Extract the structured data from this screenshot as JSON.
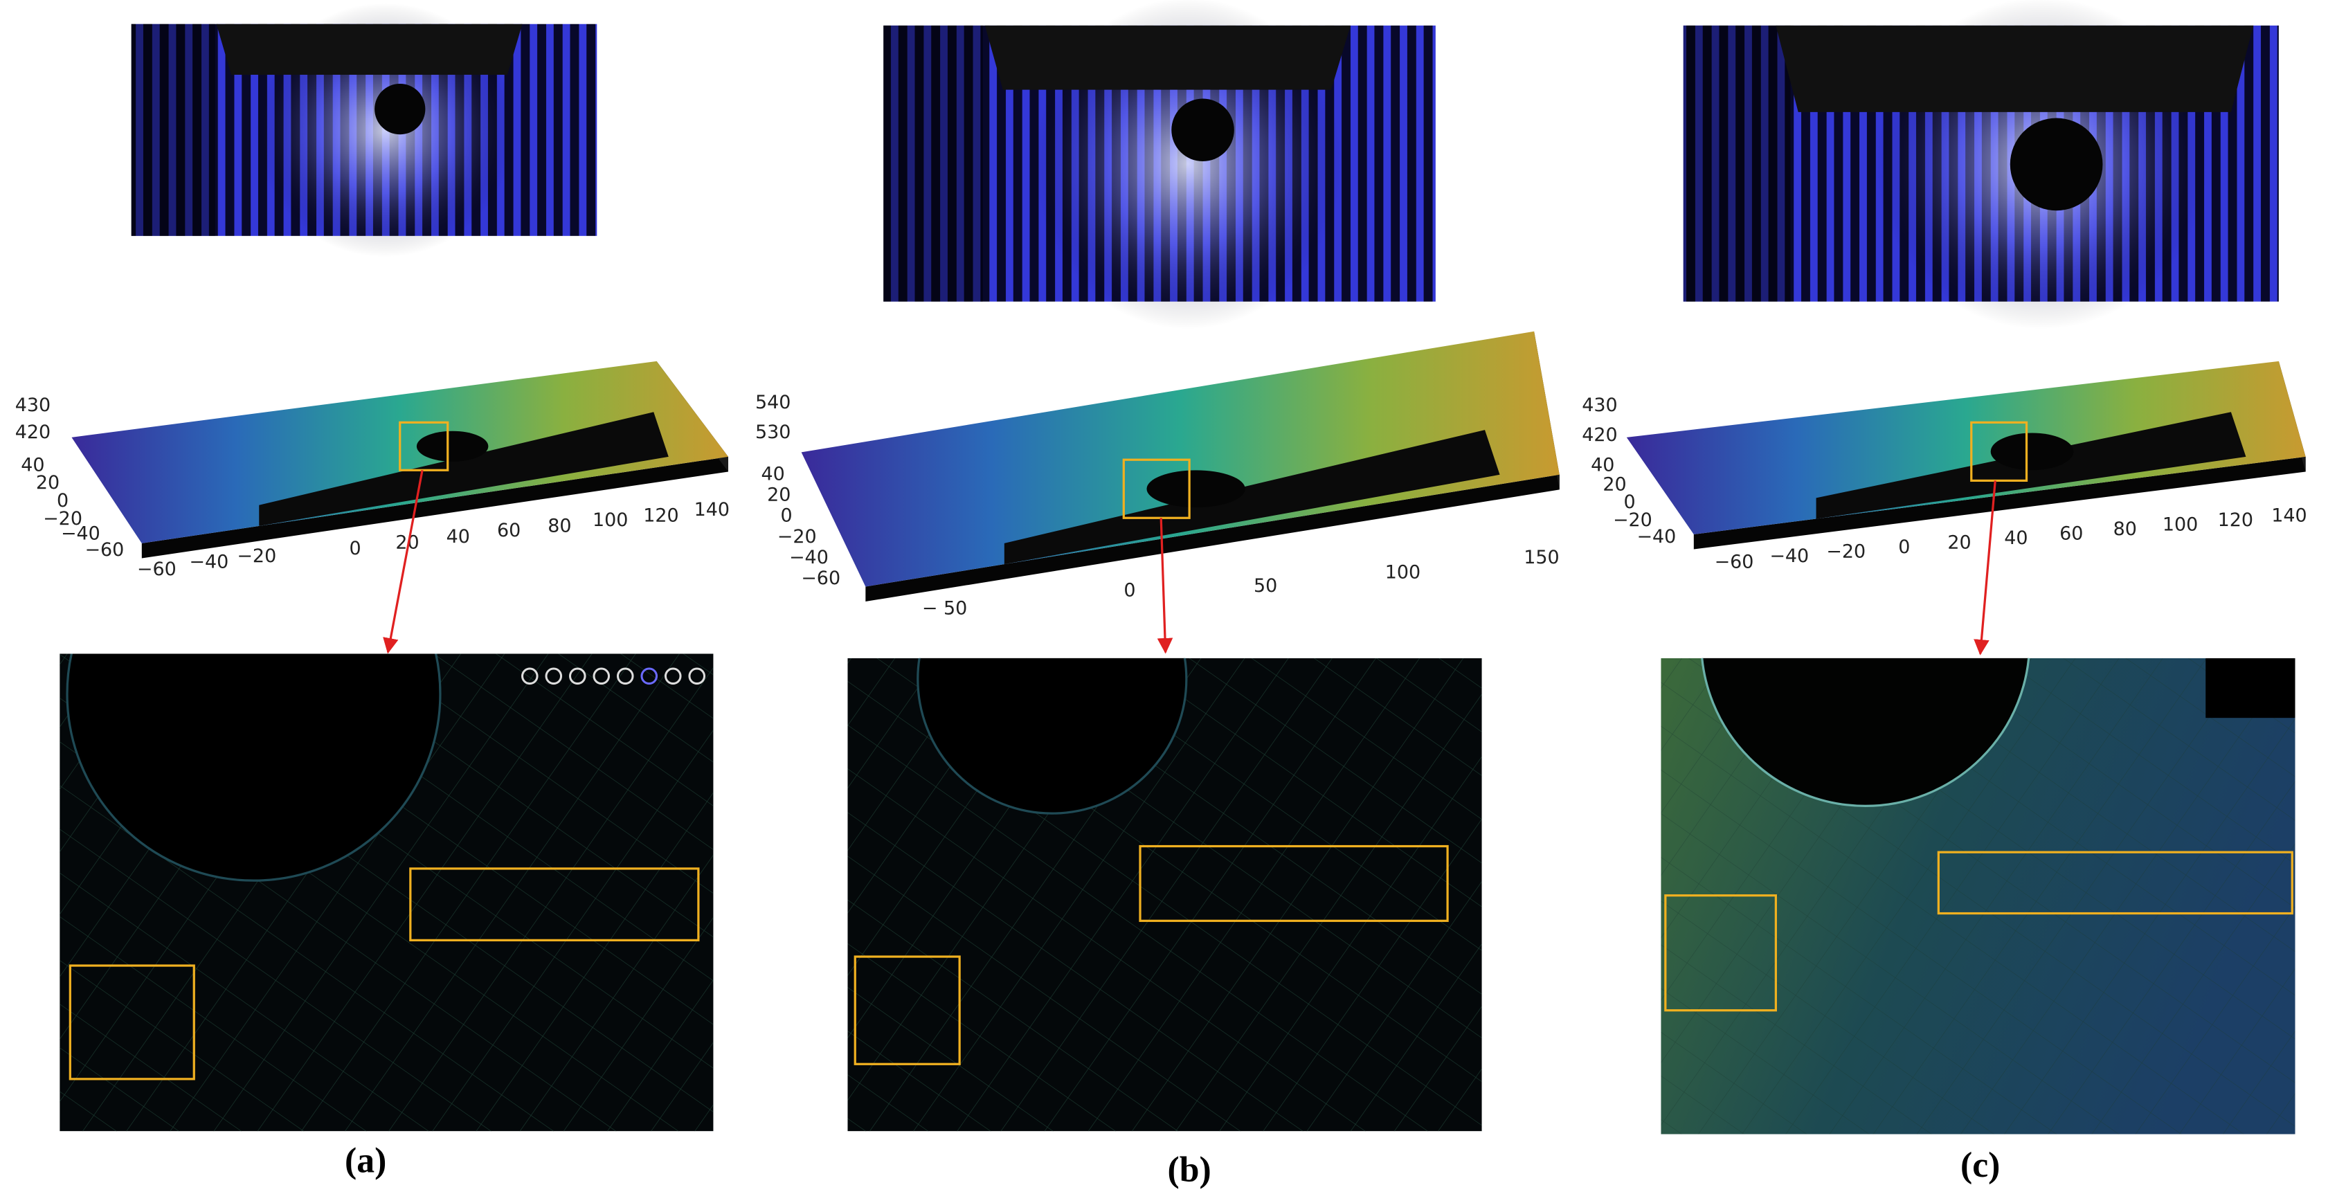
{
  "panels": [
    {
      "label": "(a)",
      "z_ticks": [
        "430",
        "420"
      ],
      "y_ticks": [
        "40",
        "20",
        "0",
        "−20",
        "−40",
        "−60"
      ],
      "x_ticks": [
        "−60",
        "−40",
        "−20",
        "0",
        "20",
        "40",
        "60",
        "80",
        "100",
        "120",
        "140"
      ]
    },
    {
      "label": "(b)",
      "z_ticks": [
        "540",
        "530"
      ],
      "y_ticks": [
        "40",
        "20",
        "0",
        "−20",
        "−40",
        "−60"
      ],
      "x_ticks": [
        "− 50",
        "0",
        "50",
        "100",
        "150"
      ]
    },
    {
      "label": "(c)",
      "z_ticks": [
        "430",
        "420"
      ],
      "y_ticks": [
        "40",
        "20",
        "0",
        "−20",
        "−40"
      ],
      "x_ticks": [
        "−60",
        "−40",
        "−20",
        "0",
        "20",
        "40",
        "60",
        "80",
        "100",
        "120",
        "140"
      ]
    }
  ]
}
